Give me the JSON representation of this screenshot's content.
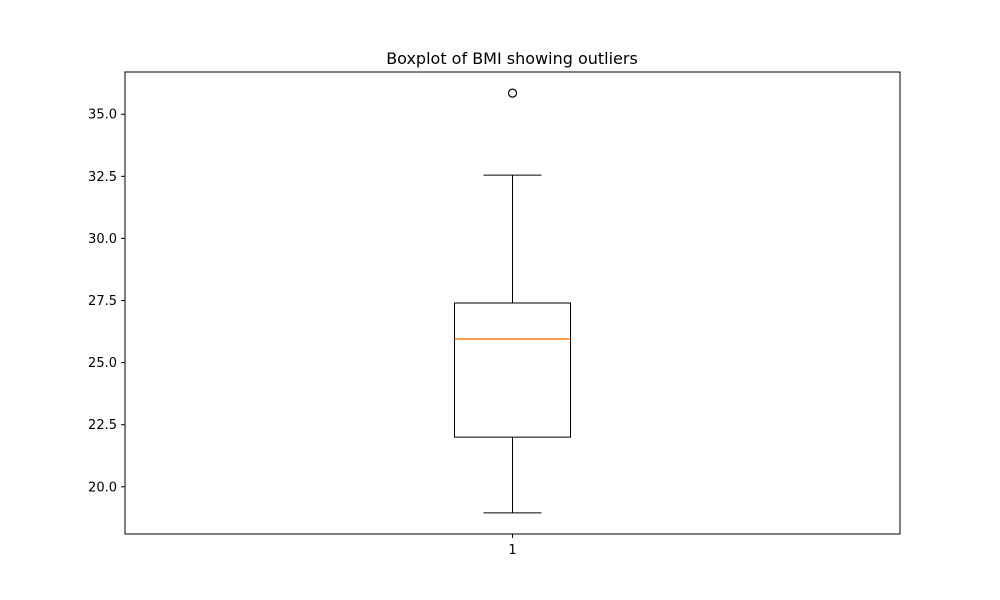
{
  "chart_data": {
    "type": "box",
    "title": "Boxplot of BMI showing outliers",
    "xlabel": "",
    "ylabel": "",
    "categories": [
      "1"
    ],
    "boxes": [
      {
        "category": "1",
        "whisker_low": 18.95,
        "q1": 22.0,
        "median": 25.95,
        "q3": 27.4,
        "whisker_high": 32.55,
        "outliers": [
          35.85
        ]
      }
    ],
    "ylim": [
      18.1,
      36.7
    ],
    "yticks": [
      20.0,
      22.5,
      25.0,
      27.5,
      30.0,
      32.5,
      35.0
    ],
    "ytick_labels": [
      "20.0",
      "22.5",
      "25.0",
      "27.5",
      "30.0",
      "32.5",
      "35.0"
    ],
    "grid": false,
    "colors": {
      "box": "#000000",
      "median": "#ff7f0e",
      "whisker": "#000000",
      "outlier": "#000000"
    }
  }
}
